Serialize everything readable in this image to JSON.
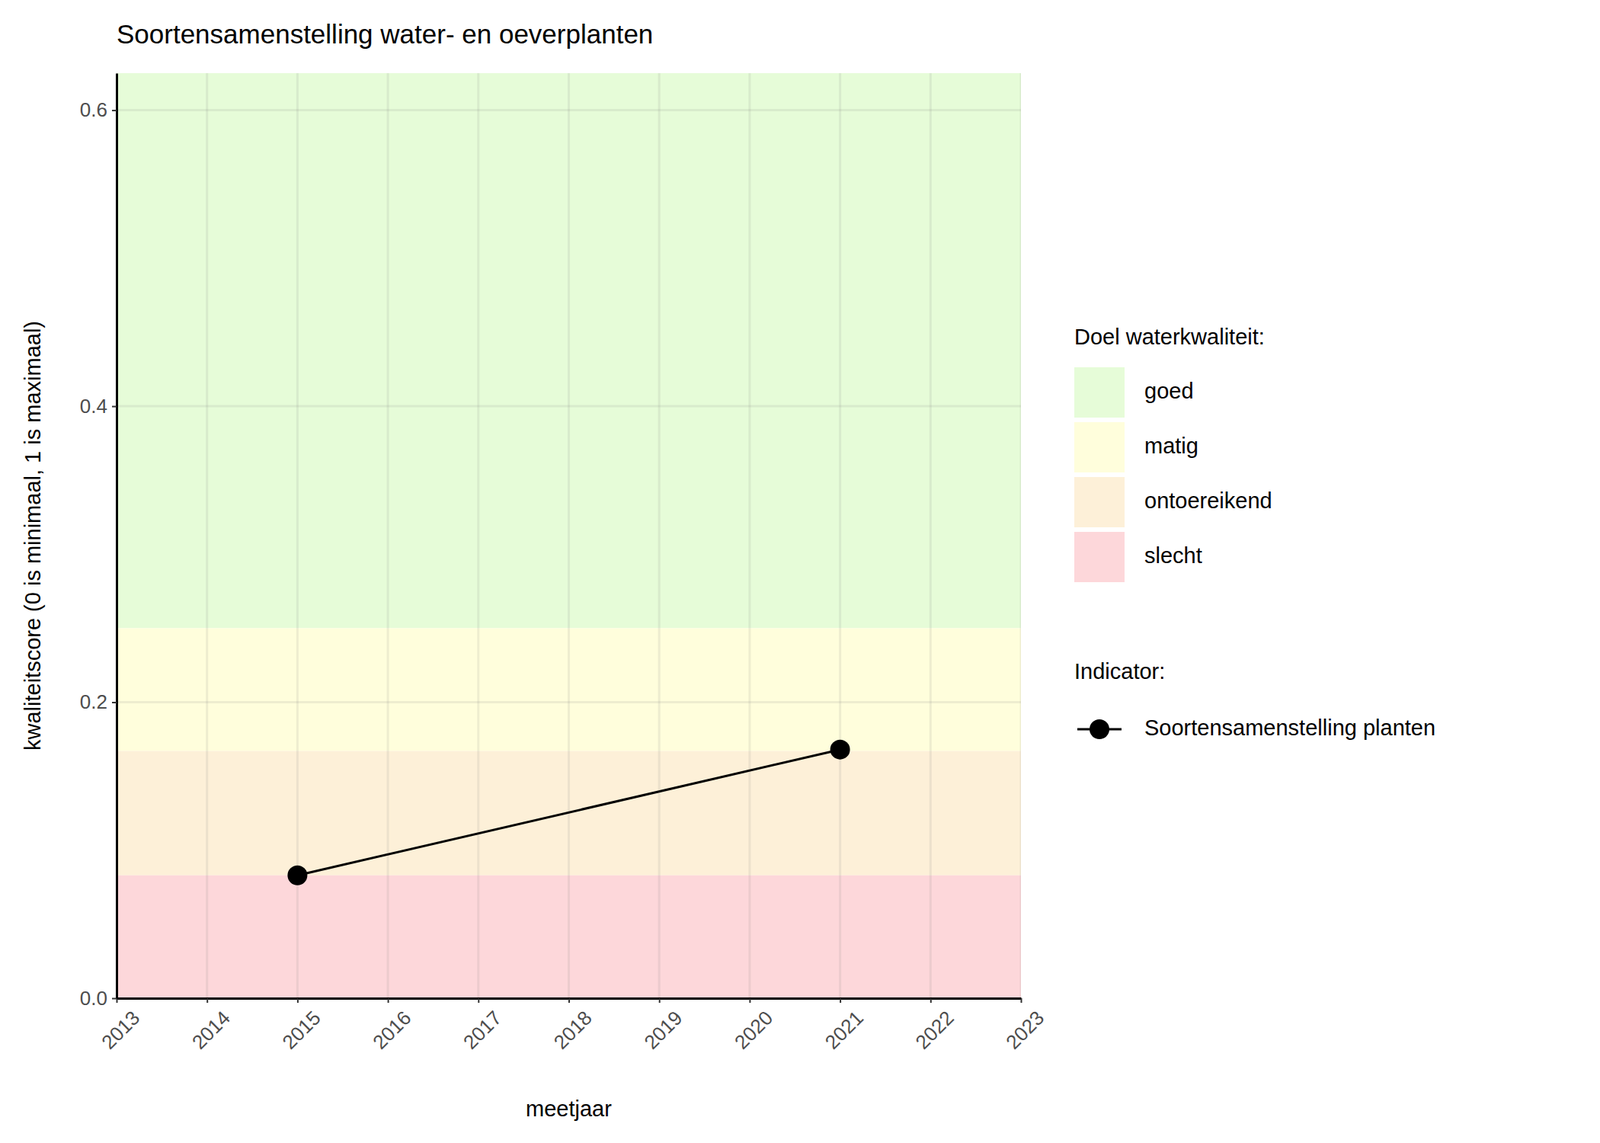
{
  "chart_data": {
    "type": "line",
    "title": "Soortensamenstelling water- en oeverplanten",
    "x_label": "meetjaar",
    "y_label": "kwaliteitscore (0 is minimaal, 1 is maximaal)",
    "x": [
      2015,
      2021
    ],
    "series": [
      {
        "name": "Soortensamenstelling planten",
        "color": "#000000",
        "marker": "circle",
        "line_style": "solid",
        "values": [
          0.083,
          0.168
        ]
      }
    ],
    "bands_title": "Doel waterkwaliteit:",
    "series_title": "Indicator:",
    "bands": [
      {
        "name": "goed",
        "color": "#e6fcd8",
        "from": 0.25,
        "to": 0.625
      },
      {
        "name": "matig",
        "color": "#fffedc",
        "from": 0.167,
        "to": 0.25
      },
      {
        "name": "ontoereikend",
        "color": "#fdf0d8",
        "from": 0.083,
        "to": 0.167
      },
      {
        "name": "slecht",
        "color": "#fdd7da",
        "from": 0,
        "to": 0.083
      }
    ],
    "xlim": [
      2013,
      2023
    ],
    "xticks": [
      2013,
      2014,
      2015,
      2016,
      2017,
      2018,
      2019,
      2020,
      2021,
      2022,
      2023
    ],
    "ylim": [
      0,
      0.625
    ],
    "yticks": [
      {
        "value": 0,
        "label": "0.0"
      },
      0.2,
      0.4,
      0.6
    ],
    "grid": true,
    "legend": "right"
  }
}
